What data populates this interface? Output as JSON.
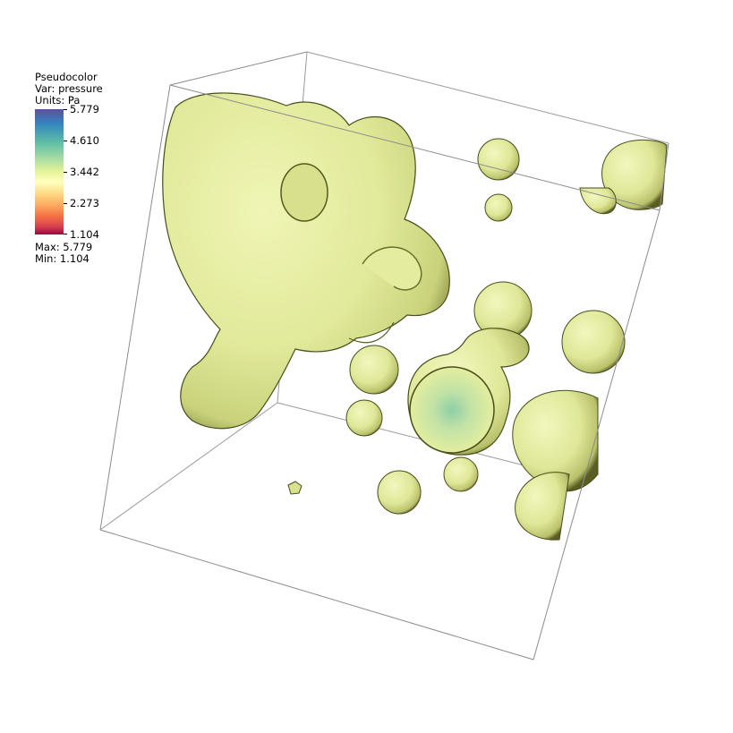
{
  "legend": {
    "title": "Pseudocolor",
    "var_label": "Var: pressure",
    "units_label": "Units: Pa",
    "ticks": [
      "5.779",
      "4.610",
      "3.442",
      "2.273",
      "1.104"
    ],
    "max_label": "Max:  5.779",
    "min_label": "Min:  1.104"
  },
  "colors": {
    "surface": "#e6ee9c",
    "surface_shadow": "#8a8f3c",
    "box_edge": "#8c8c8c",
    "colormap": [
      "#5e4fa2",
      "#3288bd",
      "#66c2a5",
      "#abdda4",
      "#e6f598",
      "#ffffbf",
      "#fee08b",
      "#fdae61",
      "#f46d43",
      "#d53e4f",
      "#9e0142"
    ]
  },
  "scene": {
    "type": "3d-isosurface",
    "bounding_box": "wireframe cube",
    "objects": [
      "large-blob",
      "spherical-droplets",
      "clipped-droplet-with-pressure-spot"
    ]
  }
}
